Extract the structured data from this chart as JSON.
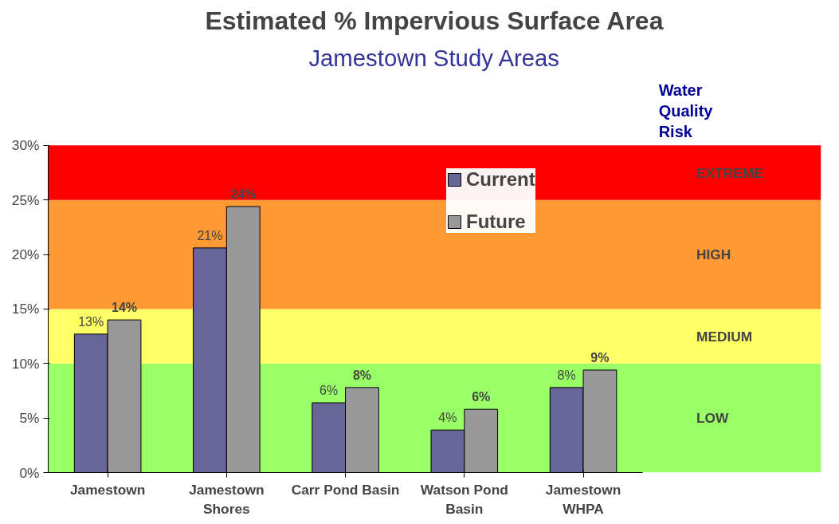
{
  "chart_data": {
    "type": "bar",
    "title": "Estimated % Impervious Surface Area",
    "subtitle": "Jamestown Study Areas",
    "categories": [
      "Jamestown",
      "Jamestown\nShores",
      "Carr Pond Basin",
      "Watson Pond\nBasin",
      "Jamestown\nWHPA"
    ],
    "series": [
      {
        "name": "Current",
        "color": "#666699",
        "values": [
          12.7,
          20.6,
          6.4,
          3.9,
          7.8
        ],
        "value_labels": [
          "13%",
          "21%",
          "6%",
          "4%",
          "8%"
        ]
      },
      {
        "name": "Future",
        "color": "#999999",
        "values": [
          14.0,
          24.4,
          7.8,
          5.8,
          9.4
        ],
        "value_labels": [
          "14%",
          "24%",
          "8%",
          "6%",
          "9%"
        ]
      }
    ],
    "ylim": [
      0,
      30
    ],
    "yticks": [
      {
        "value": 0,
        "label": "0%"
      },
      {
        "value": 5,
        "label": "5%"
      },
      {
        "value": 10,
        "label": "10%"
      },
      {
        "value": 15,
        "label": "15%"
      },
      {
        "value": 20,
        "label": "20%"
      },
      {
        "value": 25,
        "label": "25%"
      },
      {
        "value": 30,
        "label": "30%"
      }
    ],
    "bands": [
      {
        "axis": "y",
        "from": 0,
        "to": 10,
        "label": "LOW",
        "color": "#99ff66"
      },
      {
        "axis": "y",
        "from": 10,
        "to": 15,
        "label": "MEDIUM",
        "color": "#ffff66"
      },
      {
        "axis": "y",
        "from": 15,
        "to": 25,
        "label": "HIGH",
        "color": "#ff9933"
      },
      {
        "axis": "y",
        "from": 25,
        "to": 30,
        "label": "EXTREME",
        "color": "#ff0000"
      }
    ],
    "annotations": [
      "Water\nQuality\nRisk"
    ],
    "legend": "top right"
  }
}
